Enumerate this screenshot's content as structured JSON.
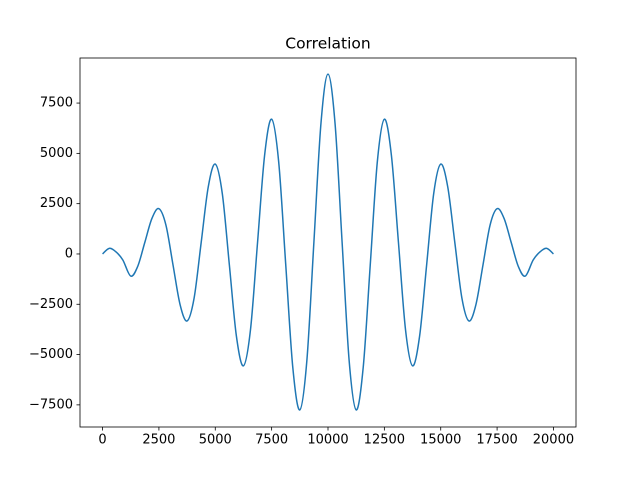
{
  "chart_data": {
    "type": "line",
    "title": "Correlation",
    "x": [
      0,
      300,
      600,
      900,
      1250,
      1562,
      1875,
      2188,
      2500,
      2812,
      3125,
      3438,
      3750,
      4062,
      4375,
      4688,
      5000,
      5312,
      5625,
      5938,
      6250,
      6562,
      6875,
      7188,
      7500,
      7812,
      8125,
      8438,
      8750,
      9062,
      9375,
      9688,
      10000,
      10312,
      10625,
      10938,
      11250,
      11562,
      11875,
      12188,
      12500,
      12812,
      13125,
      13438,
      13750,
      14062,
      14375,
      14688,
      15000,
      15312,
      15625,
      15938,
      16250,
      16562,
      16875,
      17188,
      17500,
      17812,
      18125,
      18438,
      18750,
      19100,
      19400,
      19700,
      20000
    ],
    "series": [
      {
        "color": "#1f77b4",
        "values": [
          0,
          280,
          100,
          -300,
          -1100,
          -610,
          575,
          1760,
          2250,
          1433,
          -540,
          -2513,
          -3330,
          -2188,
          570,
          3328,
          4470,
          3001,
          -545,
          -4091,
          -5560,
          -3764,
          570,
          4904,
          6700,
          4583,
          -525,
          -5633,
          -7750,
          -5305,
          595,
          6495,
          8940,
          6495,
          595,
          -5305,
          -7750,
          -5633,
          -525,
          4583,
          6700,
          4904,
          570,
          -3764,
          -5560,
          -4091,
          -545,
          3001,
          4470,
          3328,
          570,
          -2188,
          -3330,
          -2513,
          -540,
          1433,
          2250,
          1760,
          575,
          -610,
          -1100,
          -300,
          100,
          280,
          0
        ]
      }
    ],
    "xlim": [
      -1000,
      21000
    ],
    "ylim": [
      -8600,
      9740
    ],
    "xticks": [
      0,
      2500,
      5000,
      7500,
      10000,
      12500,
      15000,
      17500,
      20000
    ],
    "yticks": [
      {
        "value": -7500,
        "label": "−7500"
      },
      {
        "value": -5000,
        "label": "−5000"
      },
      {
        "value": -2500,
        "label": "−2500"
      },
      0,
      2500,
      5000,
      7500
    ]
  }
}
